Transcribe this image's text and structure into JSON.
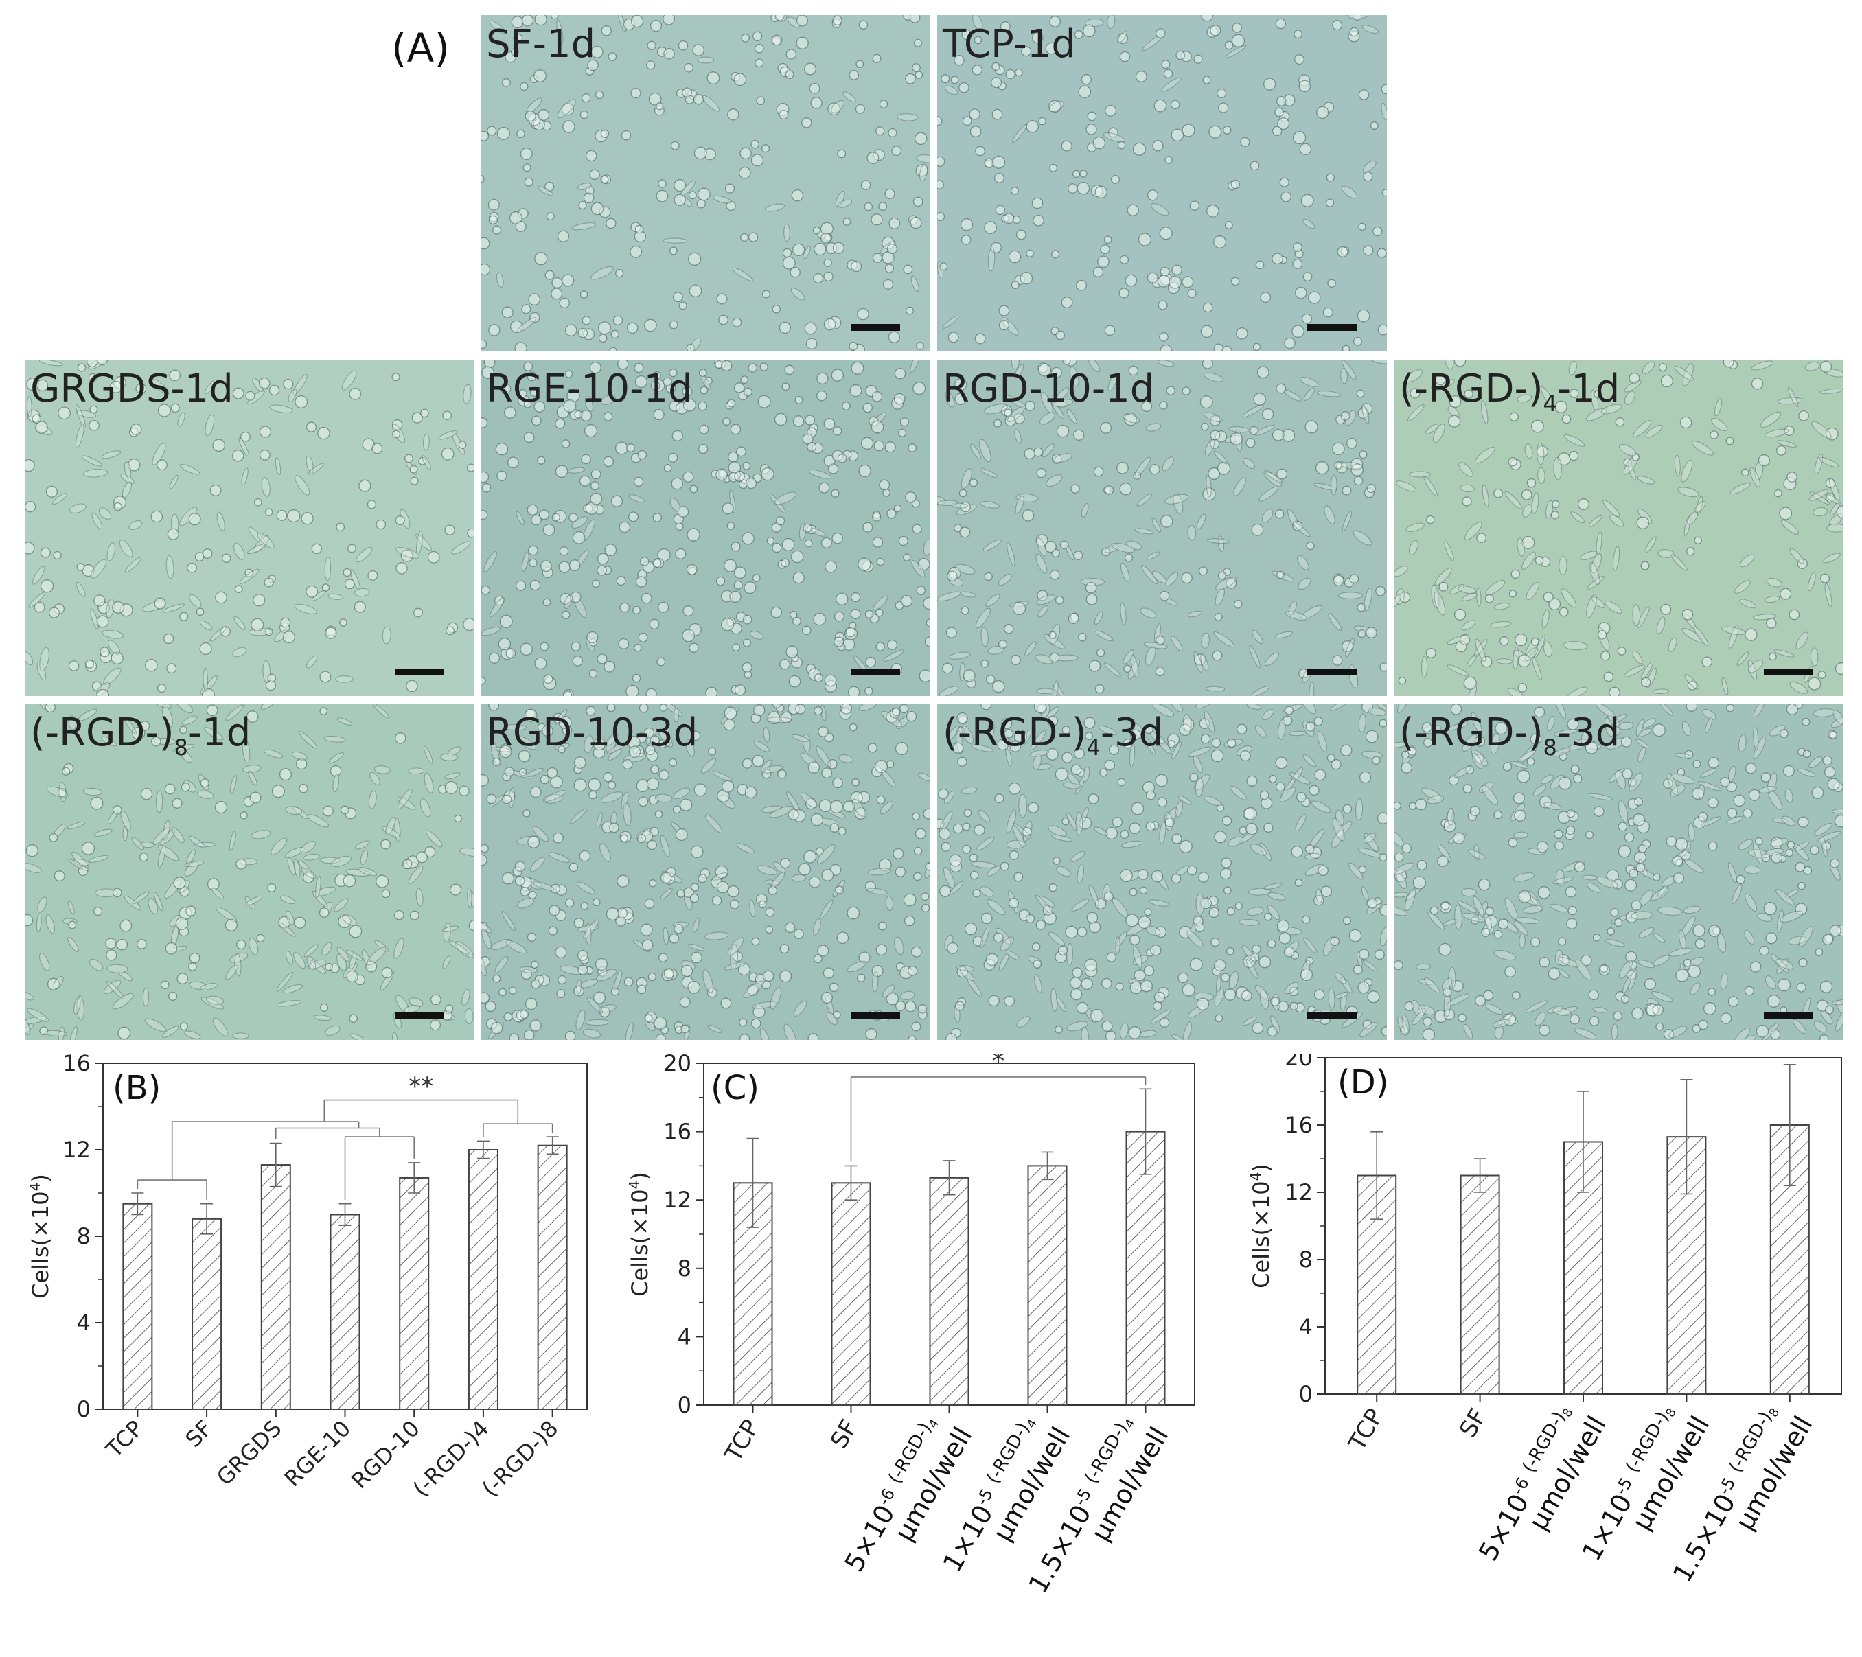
{
  "panel_A": {
    "label": "(A)",
    "panels": [
      {
        "label": "SF-1d",
        "row": 0,
        "col": 1,
        "tone": "#a7c6bf",
        "density": 0.9,
        "round": 0.85
      },
      {
        "label": "TCP-1d",
        "row": 0,
        "col": 2,
        "tone": "#a4c3c0",
        "density": 0.75,
        "round": 0.9
      },
      {
        "label": "GRGDS-1d",
        "row": 1,
        "col": 0,
        "tone": "#b0cfc2",
        "density": 0.8,
        "round": 0.6
      },
      {
        "label": "RGE-10-1d",
        "row": 1,
        "col": 1,
        "tone": "#9fc0b6",
        "density": 1.2,
        "round": 0.9
      },
      {
        "label": "RGD-10-1d",
        "row": 1,
        "col": 2,
        "tone": "#a2c2bb",
        "density": 1.0,
        "round": 0.5
      },
      {
        "label": "(-RGD-)",
        "sub": "4",
        "suffix": "-1d",
        "row": 1,
        "col": 3,
        "tone": "#aecdb6",
        "density": 0.9,
        "round": 0.3
      },
      {
        "label": "(-RGD-)",
        "sub": "8",
        "suffix": "-1d",
        "row": 2,
        "col": 0,
        "tone": "#a8cabd",
        "density": 1.0,
        "round": 0.3
      },
      {
        "label": "RGD-10-3d",
        "row": 2,
        "col": 1,
        "tone": "#9fc1b9",
        "density": 1.5,
        "round": 0.7
      },
      {
        "label": "(-RGD-)",
        "sub": "4",
        "suffix": "-3d",
        "row": 2,
        "col": 2,
        "tone": "#a0c2b9",
        "density": 1.5,
        "round": 0.5
      },
      {
        "label": "(-RGD-)",
        "sub": "8",
        "suffix": "-3d",
        "row": 2,
        "col": 3,
        "tone": "#a1c2ba",
        "density": 1.5,
        "round": 0.5
      }
    ]
  },
  "chart_data": [
    {
      "id": "B",
      "type": "bar",
      "panel_label": "(B)",
      "categories": [
        "TCP",
        "SF",
        "GRGDS",
        "RGE-10",
        "RGD-10",
        "(-RGD-)4",
        "(-RGD-)8"
      ],
      "values": [
        9.5,
        8.8,
        11.3,
        9.0,
        10.7,
        12.0,
        12.2
      ],
      "errors": [
        0.5,
        0.7,
        1.0,
        0.5,
        0.7,
        0.4,
        0.4
      ],
      "ylabel": "Cells(×10",
      "ylabel_sup": "4",
      "ylabel_end": ")",
      "ylim": [
        0,
        16
      ],
      "yticks": [
        "0",
        "4",
        "8",
        "12",
        "16"
      ],
      "significance": "**"
    },
    {
      "id": "C",
      "type": "bar",
      "panel_label": "(C)",
      "categories": [
        "TCP",
        "SF",
        "5×10-6 (-RGD-)4 μmol/well",
        "1×10-5 (-RGD-)4 μmol/well",
        "1.5×10-5 (-RGD-)4 μmol/well"
      ],
      "values": [
        13.0,
        13.0,
        13.3,
        14.0,
        16.0
      ],
      "errors": [
        2.6,
        1.0,
        1.0,
        0.8,
        2.5
      ],
      "ylabel": "Cells(×10",
      "ylabel_sup": "4",
      "ylabel_end": ")",
      "ylim": [
        0,
        20
      ],
      "yticks": [
        "0",
        "4",
        "8",
        "12",
        "16",
        "20"
      ],
      "significance": "*"
    },
    {
      "id": "D",
      "type": "bar",
      "panel_label": "(D)",
      "categories": [
        "TCP",
        "SF",
        "5×10-6 (-RGD-)8 μmol/well",
        "1×10-5 (-RGD-)8 μmol/well",
        "1.5×10-5 (-RGD-)8 μmol/well"
      ],
      "values": [
        13.0,
        13.0,
        15.0,
        15.3,
        16.0
      ],
      "errors": [
        2.6,
        1.0,
        3.0,
        3.4,
        3.6
      ],
      "ylabel": "Cells(×10",
      "ylabel_sup": "4",
      "ylabel_end": ")",
      "ylim": [
        0,
        20
      ],
      "yticks": [
        "0",
        "4",
        "8",
        "12",
        "16",
        "20"
      ]
    }
  ],
  "conc_labels": {
    "c3_pre": "5×10",
    "c3_exp": "-6",
    "c4_pre": "1×10",
    "c4_exp": "-5",
    "c5_pre": "1.5×10",
    "c5_exp": "-5",
    "rgd4_main": "(-RGD-)",
    "rgd4_sub": "4",
    "rgd8_main": "(-RGD-)",
    "rgd8_sub": "8",
    "unit": "μmol/well"
  }
}
